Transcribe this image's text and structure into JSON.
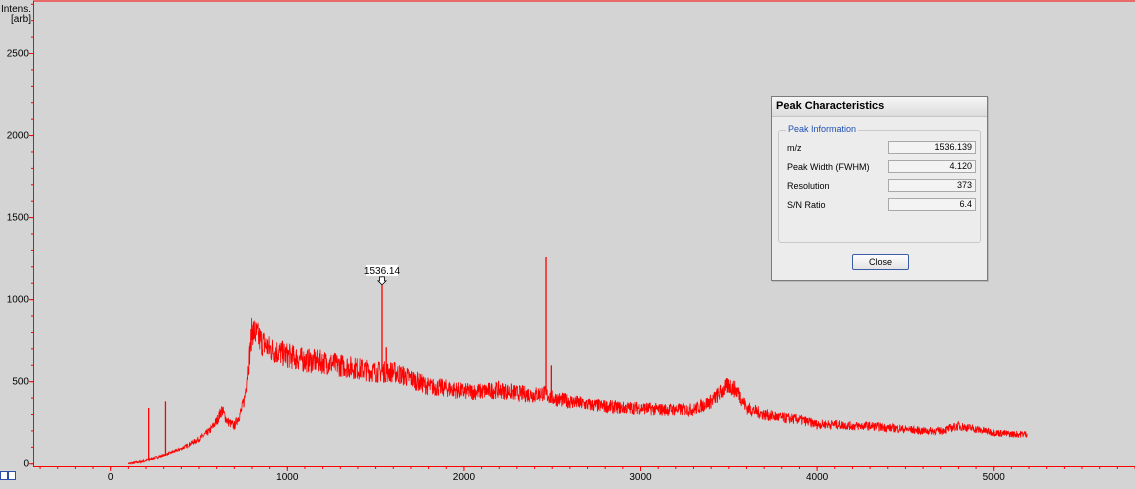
{
  "chart_data": {
    "type": "line",
    "ylabel": "Intens.\n[arb]",
    "ylabel_lines": [
      "Intens.",
      "[arb]"
    ],
    "xlim": [
      -440,
      5800
    ],
    "ylim": [
      -20,
      2820
    ],
    "x_ticks": [
      0,
      1000,
      2000,
      3000,
      4000,
      5000
    ],
    "y_ticks": [
      0,
      500,
      1000,
      1500,
      2000,
      2500
    ],
    "series": [
      {
        "color": "#ff0000",
        "x": [
          100,
          200,
          300,
          400,
          500,
          560,
          600,
          630,
          660,
          700,
          740,
          760,
          800,
          850,
          900,
          1000,
          1100,
          1200,
          1300,
          1400,
          1500,
          1600,
          1700,
          1800,
          1900,
          2000,
          2100,
          2200,
          2300,
          2400,
          2450,
          2500,
          2600,
          2700,
          2800,
          2900,
          3000,
          3100,
          3200,
          3300,
          3400,
          3500,
          3550,
          3600,
          3700,
          3800,
          3900,
          4000,
          4100,
          4200,
          4300,
          4400,
          4500,
          4600,
          4700,
          4800,
          4900,
          5000,
          5100,
          5190
        ],
        "y": [
          0,
          20,
          50,
          90,
          150,
          200,
          260,
          330,
          260,
          230,
          320,
          400,
          820,
          750,
          700,
          660,
          630,
          620,
          600,
          580,
          560,
          560,
          520,
          470,
          460,
          440,
          440,
          450,
          430,
          420,
          430,
          400,
          380,
          360,
          350,
          340,
          340,
          330,
          330,
          330,
          380,
          480,
          440,
          340,
          300,
          280,
          270,
          240,
          240,
          230,
          230,
          220,
          210,
          200,
          200,
          230,
          210,
          190,
          180,
          180
        ]
      }
    ],
    "spikes": [
      {
        "x": 215,
        "y": 340
      },
      {
        "x": 310,
        "y": 380
      },
      {
        "x": 1536.14,
        "y": 1090
      },
      {
        "x": 1560,
        "y": 710
      },
      {
        "x": 2465,
        "y": 1260
      },
      {
        "x": 2495,
        "y": 600
      }
    ],
    "peak_annotation": {
      "x": 1536.14,
      "y": 1090,
      "label": "1536.14"
    }
  },
  "dialog": {
    "title": "Peak Characteristics",
    "group_title": "Peak Information",
    "rows": [
      {
        "label": "m/z",
        "value": "1536.139"
      },
      {
        "label": "Peak Width (FWHM)",
        "value": "4.120"
      },
      {
        "label": "Resolution",
        "value": "373"
      },
      {
        "label": "S/N Ratio",
        "value": "6.4"
      }
    ],
    "close_label": "Close"
  }
}
